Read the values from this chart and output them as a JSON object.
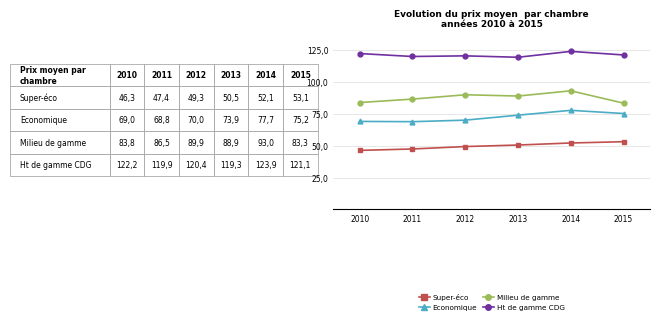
{
  "years": [
    2010,
    2011,
    2012,
    2013,
    2014,
    2015
  ],
  "series_names": [
    "Super-éco",
    "Economique",
    "Milieu de gamme",
    "Ht de gamme CDG"
  ],
  "series": {
    "Super-éco": [
      46.3,
      47.4,
      49.3,
      50.5,
      52.1,
      53.1
    ],
    "Economique": [
      69.0,
      68.8,
      70.0,
      73.9,
      77.7,
      75.2
    ],
    "Milieu de gamme": [
      83.8,
      86.5,
      89.9,
      88.9,
      93.0,
      83.3
    ],
    "Ht de gamme CDG": [
      122.2,
      119.9,
      120.4,
      119.3,
      123.9,
      121.1
    ]
  },
  "colors": {
    "Super-éco": "#C0504D",
    "Economique": "#4BACC6",
    "Milieu de gamme": "#9BBB59",
    "Ht de gamme CDG": "#7030A0"
  },
  "markers": {
    "Super-éco": "s",
    "Economique": "^",
    "Milieu de gamme": "o",
    "Ht de gamme CDG": "o"
  },
  "chart_title": "Evolution du prix moyen  par chambre\nannées 2010 à 2015",
  "ylim": [
    0,
    140
  ],
  "yticks": [
    0,
    25.0,
    50.0,
    75.0,
    100.0,
    125.0
  ],
  "ytick_labels": [
    "",
    "25,0",
    "50,0",
    "75,0",
    "100,0",
    "125,0"
  ],
  "table_all_rows": [
    [
      "Prix moyen par\nchambre",
      "2010",
      "2011",
      "2012",
      "2013",
      "2014",
      "2015"
    ],
    [
      "Super-éco",
      "46,3",
      "47,4",
      "49,3",
      "50,5",
      "52,1",
      "53,1"
    ],
    [
      "Economique",
      "69,0",
      "68,8",
      "70,0",
      "73,9",
      "77,7",
      "75,2"
    ],
    [
      "Milieu de gamme",
      "83,8",
      "86,5",
      "89,9",
      "88,9",
      "93,0",
      "83,3"
    ],
    [
      "Ht de gamme CDG",
      "122,2",
      "119,9",
      "120,4",
      "119,3",
      "123,9",
      "121,1"
    ]
  ],
  "bg_color": "#FFFFFF",
  "table_border_color": "#999999",
  "grid_color": "#DDDDDD"
}
